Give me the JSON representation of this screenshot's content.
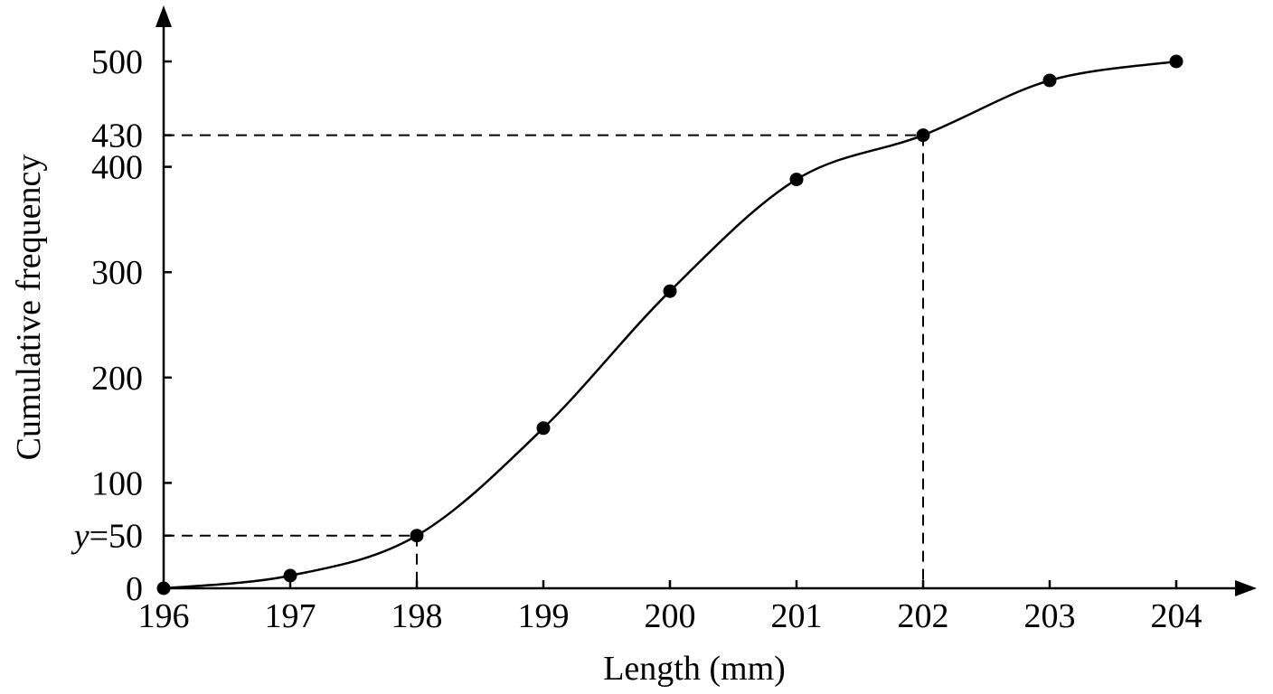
{
  "chart_data": {
    "type": "line",
    "title": "",
    "xlabel": "Length (mm)",
    "ylabel": "Cumulative frequency",
    "xlim": [
      196,
      204
    ],
    "ylim": [
      0,
      500
    ],
    "x_ticks": [
      "196",
      "197",
      "198",
      "199",
      "200",
      "201",
      "202",
      "203",
      "204"
    ],
    "y_ticks": [
      {
        "value": 0,
        "label": "0"
      },
      {
        "value": 100,
        "label": "100"
      },
      {
        "value": 200,
        "label": "200"
      },
      {
        "value": 300,
        "label": "300"
      },
      {
        "value": 400,
        "label": "400"
      },
      {
        "value": 430,
        "label": "430"
      },
      {
        "value": 500,
        "label": "500"
      }
    ],
    "y_annotation": {
      "value": 50,
      "variable": "y",
      "equals": "=",
      "number": "50"
    },
    "points": [
      {
        "x": 196,
        "y": 0
      },
      {
        "x": 197,
        "y": 12
      },
      {
        "x": 198,
        "y": 50
      },
      {
        "x": 199,
        "y": 152
      },
      {
        "x": 200,
        "y": 282
      },
      {
        "x": 201,
        "y": 388
      },
      {
        "x": 202,
        "y": 430
      },
      {
        "x": 203,
        "y": 482
      },
      {
        "x": 204,
        "y": 500
      }
    ],
    "reference_lines": [
      {
        "x": 198,
        "y": 50
      },
      {
        "x": 202,
        "y": 430
      }
    ],
    "grid": false,
    "colors": {
      "line": "#000000",
      "marker": "#000000",
      "axis": "#000000"
    }
  }
}
